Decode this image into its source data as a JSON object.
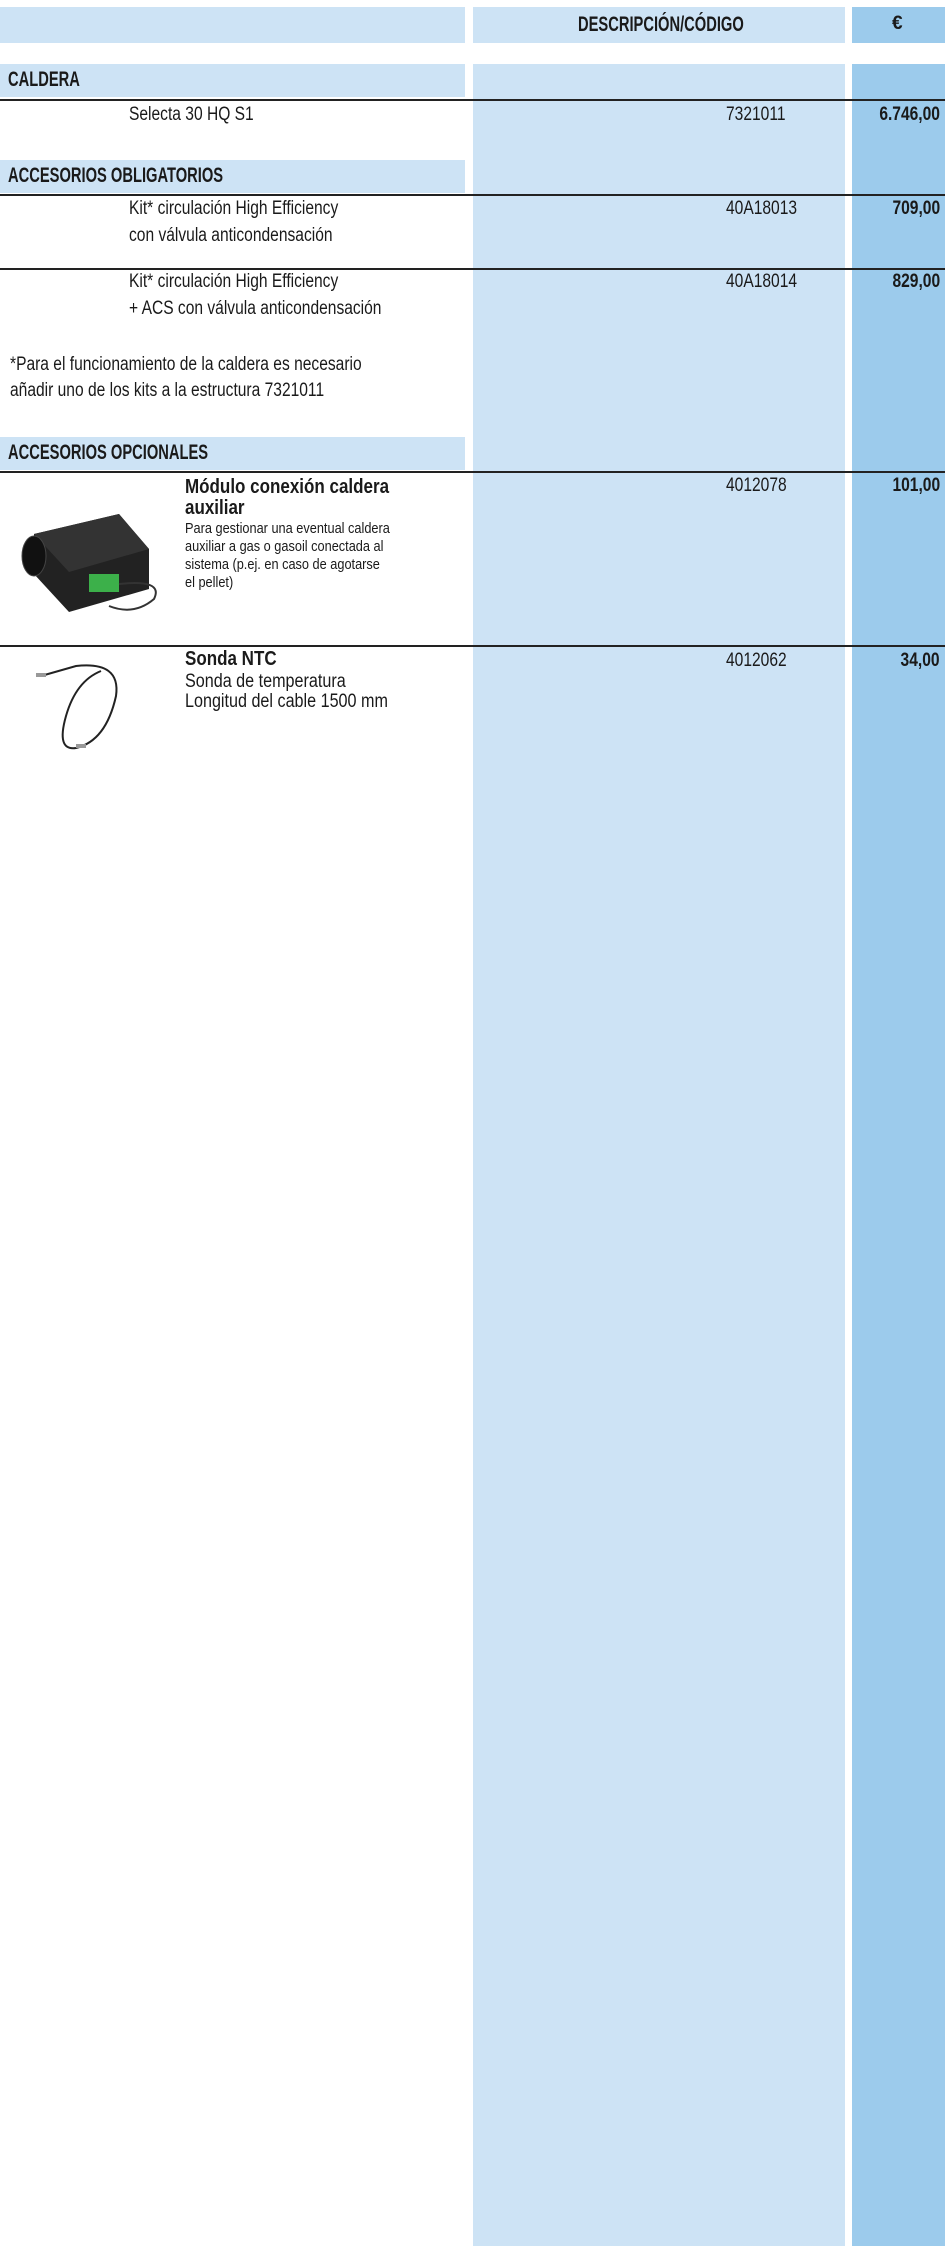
{
  "header": {
    "columns": [
      "DESCRIPCIÓN/CÓDIGO",
      "€"
    ]
  },
  "sections": [
    {
      "title": "CALDERA",
      "items": [
        {
          "description": [
            "Selecta 30 HQ S1"
          ],
          "code": "7321011",
          "price": "6.746,00"
        }
      ]
    },
    {
      "title": "ACCESORIOS OBLIGATORIOS",
      "items": [
        {
          "description": [
            "Kit* circulación High Efficiency",
            "con válvula anticondensación"
          ],
          "code": "40A18013",
          "price": "709,00"
        },
        {
          "description": [
            "Kit* circulación High Efficiency",
            "+ ACS con válvula anticondensación"
          ],
          "code": "40A18014",
          "price": "829,00"
        }
      ],
      "note": [
        "*Para el funcionamiento de la caldera es necesario",
        "añadir uno de los kits a la estructura 7321011"
      ]
    },
    {
      "title": "ACCESORIOS OPCIONALES",
      "items": [
        {
          "name": [
            "Módulo conexión caldera",
            "auxiliar"
          ],
          "description": [
            "Para gestionar una eventual caldera",
            "auxiliar a gas o gasoil conectada al",
            "sistema (p.ej. en caso de agotarse",
            "el pellet)"
          ],
          "code": "4012078",
          "price": "101,00"
        },
        {
          "name": [
            "Sonda NTC"
          ],
          "description": [
            "Sonda de temperatura",
            "Longitud del cable 1500 mm"
          ],
          "code": "4012062",
          "price": "34,00"
        }
      ]
    }
  ]
}
